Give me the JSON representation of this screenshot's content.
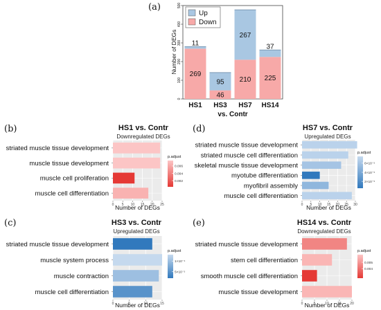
{
  "chart_data": [
    {
      "panel": "(a)",
      "type": "bar",
      "stacked": true,
      "ylabel": "Number of DEGs",
      "xlabel": "vs. Contr",
      "ylim": [
        0,
        500
      ],
      "yticks": [
        0,
        100,
        200,
        300,
        400,
        500
      ],
      "legend": [
        "Up",
        "Down"
      ],
      "legend_position": "top-left",
      "categories": [
        "HS1",
        "HS3",
        "HS7",
        "HS14"
      ],
      "series": [
        {
          "name": "Down",
          "values": [
            269,
            46,
            210,
            225
          ],
          "labels": [
            "269",
            "46",
            "210",
            "225"
          ]
        },
        {
          "name": "Up",
          "values": [
            11,
            95,
            267,
            37
          ],
          "labels": [
            "11",
            "95",
            "267",
            "37"
          ]
        }
      ]
    },
    {
      "panel": "(b)",
      "type": "bar",
      "orientation": "horizontal",
      "title": "HS1 vs. Contr",
      "subtitle": "Downregulated DEGs",
      "xlabel": "Number of DEGs",
      "xlim": [
        0,
        25
      ],
      "xticks": [
        "0",
        "5",
        "10",
        "15",
        "20",
        "25"
      ],
      "categories": [
        "striated muscle tissue development",
        "muscle tissue development",
        "muscle cell proliferation",
        "muscle cell differentiation"
      ],
      "values": [
        24,
        24,
        11,
        18
      ],
      "padjust": [
        0.0075,
        0.0075,
        0.0003,
        0.0065
      ],
      "color_low": "#e53935",
      "color_high": "#fcc5c5",
      "legend_title": "p.adjust",
      "legend_ticks": [
        "0.006",
        "0.004",
        "0.002"
      ],
      "legend_tick_values": [
        0.006,
        0.004,
        0.002
      ],
      "legend_range": [
        0.0003,
        0.0075
      ]
    },
    {
      "panel": "(c)",
      "type": "bar",
      "orientation": "horizontal",
      "title": "HS3 vs. Contr",
      "subtitle": "Upregulated DEGs",
      "xlabel": "Number of DEGs",
      "xlim": [
        0,
        15
      ],
      "xticks": [
        "0",
        "5",
        "10",
        "15"
      ],
      "categories": [
        "striated muscle tissue development",
        "muscle system process",
        "muscle contraction",
        "muscle cell differentiation"
      ],
      "values": [
        12,
        15,
        14,
        12
      ],
      "padjust": [
        2e-05,
        0.00013,
        0.0001,
        5e-05
      ],
      "color_low": "#3179bd",
      "color_high": "#c5d9ee",
      "legend_title": "p.adjust",
      "legend_ticks": [
        "1×10⁻⁴",
        "5×10⁻⁵"
      ],
      "legend_tick_values": [
        0.0001,
        5e-05
      ],
      "legend_range": [
        2e-05,
        0.00013
      ]
    },
    {
      "panel": "(d)",
      "type": "bar",
      "orientation": "horizontal",
      "title": "HS7 vs. Contr",
      "subtitle": "Upregulated DEGs",
      "xlabel": "Number of DEGs",
      "xlim": [
        0,
        30
      ],
      "xticks": [
        "0",
        "5",
        "10",
        "15",
        "20",
        "25",
        "30"
      ],
      "categories": [
        "striated muscle tissue development",
        "striated muscle cell differentiation",
        "skeletal muscle tissue development",
        "myotube differentiation",
        "myofibril assembly",
        "muscle cell differentiation"
      ],
      "values": [
        31,
        26,
        22,
        10,
        15,
        28
      ],
      "padjust": [
        7e-05,
        7e-05,
        6e-05,
        5e-06,
        5e-05,
        7e-05
      ],
      "color_low": "#3179bd",
      "color_high": "#c5d9ee",
      "legend_title": "p.adjust",
      "legend_ticks": [
        "6×10⁻⁵",
        "4×10⁻⁵",
        "2×10⁻⁵"
      ],
      "legend_tick_values": [
        6e-05,
        4e-05,
        2e-05
      ],
      "legend_range": [
        5e-06,
        7.5e-05
      ]
    },
    {
      "panel": "(e)",
      "type": "bar",
      "orientation": "horizontal",
      "title": "HS14 vs. Contr",
      "subtitle": "Downregulated DEGs",
      "xlabel": "Number of DEGs",
      "xlim": [
        0,
        20
      ],
      "xticks": [
        "0",
        "5",
        "10",
        "15",
        "20"
      ],
      "categories": [
        "striated muscle tissue development",
        "stem cell differentiation",
        "smooth muscle cell differentiation",
        "muscle tissue development"
      ],
      "values": [
        18,
        12,
        6,
        20
      ],
      "padjust": [
        0.0045,
        0.0058,
        0.0025,
        0.0058
      ],
      "color_low": "#e53935",
      "color_high": "#fcc5c5",
      "legend_title": "p.adjust",
      "legend_ticks": [
        "0.005",
        "0.004"
      ],
      "legend_tick_values": [
        0.005,
        0.004
      ],
      "legend_range": [
        0.0025,
        0.0062
      ]
    }
  ]
}
